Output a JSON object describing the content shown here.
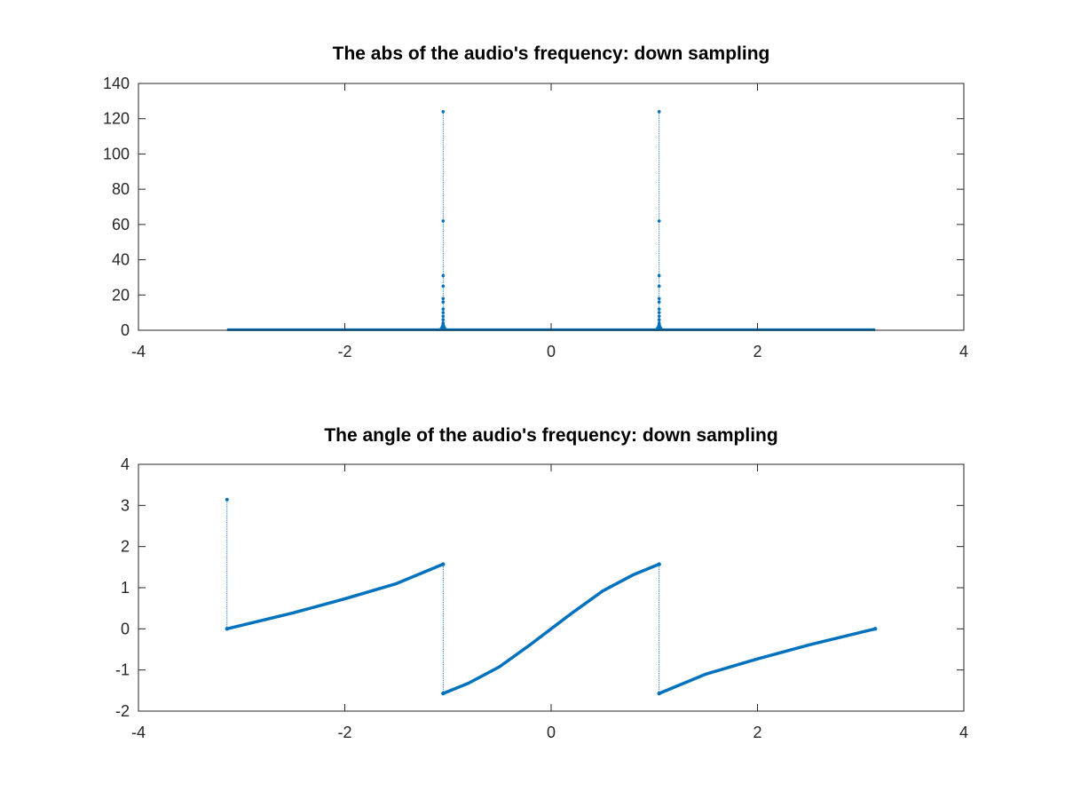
{
  "chart_data": [
    {
      "type": "line",
      "title": "The abs of the audio's frequency: down sampling",
      "xlabel": "",
      "ylabel": "",
      "xlim": [
        -4,
        4
      ],
      "ylim": [
        0,
        140
      ],
      "xticks": [
        -4,
        -2,
        0,
        2,
        4
      ],
      "yticks": [
        0,
        20,
        40,
        60,
        80,
        100,
        120,
        140
      ],
      "grid": false,
      "legend": "none",
      "series_color": "#0072BD",
      "marker": "dot",
      "domain": [
        -3.1416,
        3.1416
      ],
      "peaks": [
        {
          "x": -1.047,
          "values": [
            124,
            62,
            31,
            25,
            18,
            16,
            12,
            10,
            8,
            6,
            4,
            3,
            2
          ]
        },
        {
          "x": 1.047,
          "values": [
            124,
            62,
            31,
            25,
            18,
            16,
            12,
            10,
            8,
            6,
            4,
            3,
            2
          ]
        }
      ],
      "baseline": 0.3
    },
    {
      "type": "line",
      "title": "The angle of the audio's frequency: down sampling",
      "xlabel": "",
      "ylabel": "",
      "xlim": [
        -4,
        4
      ],
      "ylim": [
        -2,
        4
      ],
      "xticks": [
        -4,
        -2,
        0,
        2,
        4
      ],
      "yticks": [
        -2,
        -1,
        0,
        1,
        2,
        3,
        4
      ],
      "grid": false,
      "legend": "none",
      "series_color": "#0072BD",
      "marker": "dot",
      "isolated_point": {
        "x": -3.1416,
        "y": 3.1416
      },
      "segments": [
        {
          "x": [
            -3.1416,
            -2.5,
            -2.0,
            -1.5,
            -1.047
          ],
          "y": [
            0.0,
            0.39,
            0.73,
            1.1,
            1.571
          ]
        },
        {
          "x": [
            -1.047,
            -0.8,
            -0.5,
            -0.2,
            0.0,
            0.2,
            0.5,
            0.8,
            1.047
          ],
          "y": [
            -1.571,
            -1.32,
            -0.92,
            -0.38,
            0.0,
            0.38,
            0.92,
            1.32,
            1.571
          ]
        },
        {
          "x": [
            1.047,
            1.5,
            2.0,
            2.5,
            3.1416
          ],
          "y": [
            -1.571,
            -1.1,
            -0.73,
            -0.39,
            0.0
          ]
        }
      ]
    }
  ]
}
